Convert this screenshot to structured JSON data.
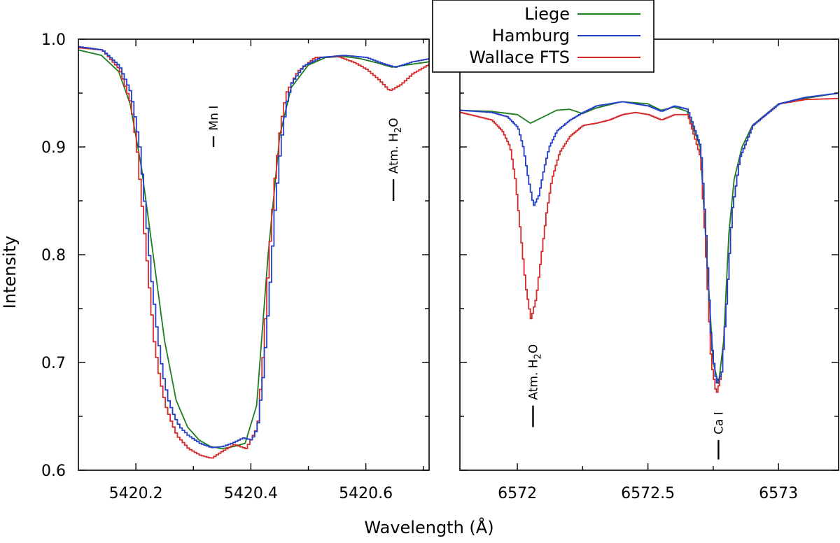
{
  "chart_data": {
    "type": "line",
    "y_axis": {
      "label": "Intensity",
      "ylim": [
        0.6,
        1.0
      ],
      "ticks": [
        0.6,
        0.7,
        0.8,
        0.9,
        1.0
      ],
      "tick_labels": [
        "0.6",
        "0.7",
        "0.8",
        "0.9",
        "1.0"
      ]
    },
    "x_axis_label": "Wavelength (Å)",
    "legend": {
      "placement": "top-center",
      "entries": [
        {
          "name": "Liege",
          "color": "#1e7d1e"
        },
        {
          "name": "Hamburg",
          "color": "#2440c8"
        },
        {
          "name": "Wallace FTS",
          "color": "#d62a2a"
        }
      ]
    },
    "panels": [
      {
        "id": "left",
        "xlim": [
          5420.1,
          5420.71
        ],
        "xticks": [
          5420.2,
          5420.4,
          5420.6
        ],
        "xtick_labels": [
          "5420.2",
          "5420.4",
          "5420.6"
        ],
        "annotations": [
          {
            "text": "Mn I",
            "x": 5420.335,
            "y_top": 0.91,
            "y_bottom": 0.9
          },
          {
            "text": "Atm. H",
            "subscript": "2",
            "suffix": "O",
            "x": 5420.648,
            "y_top": 0.87,
            "y_bottom": 0.85
          }
        ],
        "series": [
          {
            "name": "Liege",
            "color": "#1e7d1e",
            "step": false,
            "x": [
              5420.1,
              5420.14,
              5420.17,
              5420.19,
              5420.21,
              5420.23,
              5420.25,
              5420.27,
              5420.29,
              5420.31,
              5420.33,
              5420.35,
              5420.37,
              5420.39,
              5420.41,
              5420.43,
              5420.45,
              5420.47,
              5420.5,
              5420.53,
              5420.56,
              5420.59,
              5420.62,
              5420.645,
              5420.67,
              5420.71
            ],
            "y": [
              0.99,
              0.985,
              0.97,
              0.94,
              0.88,
              0.8,
              0.72,
              0.665,
              0.64,
              0.628,
              0.622,
              0.62,
              0.622,
              0.625,
              0.66,
              0.8,
              0.91,
              0.955,
              0.976,
              0.983,
              0.984,
              0.982,
              0.978,
              0.974,
              0.976,
              0.979
            ]
          },
          {
            "name": "Hamburg",
            "color": "#2440c8",
            "step": true,
            "x": [
              5420.1,
              5420.14,
              5420.17,
              5420.19,
              5420.205,
              5420.215,
              5420.225,
              5420.235,
              5420.245,
              5420.255,
              5420.265,
              5420.275,
              5420.29,
              5420.31,
              5420.33,
              5420.35,
              5420.37,
              5420.385,
              5420.4,
              5420.41,
              5420.42,
              5420.43,
              5420.44,
              5420.45,
              5420.46,
              5420.47,
              5420.49,
              5420.52,
              5420.56,
              5420.6,
              5420.63,
              5420.65,
              5420.68,
              5420.71
            ],
            "y": [
              0.993,
              0.99,
              0.975,
              0.95,
              0.9,
              0.84,
              0.78,
              0.73,
              0.69,
              0.665,
              0.65,
              0.64,
              0.632,
              0.625,
              0.621,
              0.622,
              0.626,
              0.63,
              0.628,
              0.64,
              0.69,
              0.76,
              0.84,
              0.9,
              0.94,
              0.96,
              0.975,
              0.983,
              0.985,
              0.983,
              0.977,
              0.974,
              0.979,
              0.982
            ]
          },
          {
            "name": "Wallace FTS",
            "color": "#d62a2a",
            "step": true,
            "x": [
              5420.1,
              5420.14,
              5420.17,
              5420.19,
              5420.2,
              5420.21,
              5420.22,
              5420.23,
              5420.24,
              5420.25,
              5420.26,
              5420.27,
              5420.29,
              5420.31,
              5420.33,
              5420.35,
              5420.37,
              5420.39,
              5420.41,
              5420.42,
              5420.43,
              5420.44,
              5420.45,
              5420.46,
              5420.48,
              5420.51,
              5420.55,
              5420.58,
              5420.6,
              5420.62,
              5420.64,
              5420.66,
              5420.68,
              5420.71
            ],
            "y": [
              0.992,
              0.99,
              0.972,
              0.94,
              0.9,
              0.84,
              0.78,
              0.72,
              0.685,
              0.66,
              0.645,
              0.632,
              0.62,
              0.614,
              0.611,
              0.618,
              0.624,
              0.62,
              0.64,
              0.71,
              0.8,
              0.87,
              0.92,
              0.95,
              0.97,
              0.983,
              0.984,
              0.978,
              0.972,
              0.963,
              0.952,
              0.958,
              0.968,
              0.977
            ]
          }
        ]
      },
      {
        "id": "right",
        "xlim": [
          6571.78,
          6573.23
        ],
        "xticks": [
          6572.0,
          6572.5,
          6573.0
        ],
        "xtick_labels": [
          "6572",
          "6572.5",
          "6573"
        ],
        "annotations": [
          {
            "text": "Atm. H",
            "subscript": "2",
            "suffix": "O",
            "x": 6572.06,
            "y_top": 0.66,
            "y_bottom": 0.64
          },
          {
            "text": "Ca I",
            "x": 6572.77,
            "y_top": 0.628,
            "y_bottom": 0.61
          }
        ],
        "series": [
          {
            "name": "Liege",
            "color": "#1e7d1e",
            "step": false,
            "x": [
              6571.78,
              6571.9,
              6572.0,
              6572.05,
              6572.1,
              6572.15,
              6572.2,
              6572.25,
              6572.3,
              6572.4,
              6572.5,
              6572.55,
              6572.6,
              6572.65,
              6572.7,
              6572.73,
              6572.75,
              6572.77,
              6572.79,
              6572.81,
              6572.83,
              6572.86,
              6572.9,
              6573.0,
              6573.1,
              6573.23
            ],
            "y": [
              0.934,
              0.933,
              0.93,
              0.922,
              0.928,
              0.934,
              0.935,
              0.931,
              0.936,
              0.942,
              0.94,
              0.934,
              0.937,
              0.933,
              0.9,
              0.78,
              0.7,
              0.68,
              0.72,
              0.82,
              0.87,
              0.9,
              0.92,
              0.94,
              0.945,
              0.95
            ]
          },
          {
            "name": "Hamburg",
            "color": "#2440c8",
            "step": true,
            "x": [
              6571.78,
              6571.9,
              6571.96,
              6572.0,
              6572.02,
              6572.04,
              6572.06,
              6572.08,
              6572.1,
              6572.12,
              6572.15,
              6572.2,
              6572.25,
              6572.3,
              6572.4,
              6572.5,
              6572.55,
              6572.6,
              6572.65,
              6572.7,
              6572.72,
              6572.74,
              6572.76,
              6572.78,
              6572.8,
              6572.82,
              6572.85,
              6572.9,
              6573.0,
              6573.1,
              6573.23
            ],
            "y": [
              0.934,
              0.932,
              0.928,
              0.918,
              0.9,
              0.87,
              0.845,
              0.855,
              0.88,
              0.9,
              0.915,
              0.925,
              0.932,
              0.938,
              0.942,
              0.938,
              0.933,
              0.938,
              0.935,
              0.9,
              0.82,
              0.72,
              0.68,
              0.69,
              0.76,
              0.84,
              0.89,
              0.92,
              0.94,
              0.946,
              0.95
            ]
          },
          {
            "name": "Wallace FTS",
            "color": "#d62a2a",
            "step": true,
            "x": [
              6571.78,
              6571.85,
              6571.9,
              6571.94,
              6571.97,
              6571.99,
              6572.01,
              6572.03,
              6572.05,
              6572.07,
              6572.09,
              6572.11,
              6572.13,
              6572.16,
              6572.2,
              6572.25,
              6572.3,
              6572.35,
              6572.4,
              6572.45,
              6572.5,
              6572.55,
              6572.6,
              6572.65,
              6572.7,
              6572.72,
              6572.74,
              6572.76,
              6572.78,
              6572.8,
              6572.82,
              6572.85,
              6572.9,
              6573.0,
              6573.1,
              6573.23
            ],
            "y": [
              0.932,
              0.928,
              0.925,
              0.915,
              0.9,
              0.87,
              0.82,
              0.77,
              0.74,
              0.76,
              0.8,
              0.84,
              0.87,
              0.895,
              0.91,
              0.92,
              0.922,
              0.925,
              0.93,
              0.932,
              0.93,
              0.925,
              0.93,
              0.93,
              0.89,
              0.8,
              0.7,
              0.67,
              0.69,
              0.76,
              0.84,
              0.89,
              0.92,
              0.94,
              0.944,
              0.945
            ]
          }
        ]
      }
    ]
  }
}
